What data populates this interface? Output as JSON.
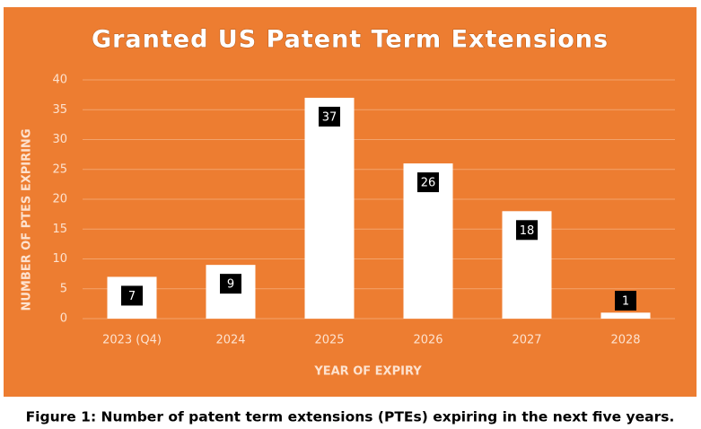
{
  "chart_data": {
    "type": "bar",
    "title": "Granted US Patent Term Extensions",
    "x_label": "YEAR OF EXPIRY",
    "y_label": "NUMBER OF PTES EXPIRING",
    "categories": [
      "2023 (Q4)",
      "2024",
      "2025",
      "2026",
      "2027",
      "2028"
    ],
    "values": [
      7,
      9,
      37,
      26,
      18,
      1
    ],
    "color": "#ffffff",
    "ylim": [
      0,
      40
    ],
    "yticks": [
      0,
      5,
      10,
      15,
      20,
      25,
      30,
      35,
      40
    ],
    "grid": true
  },
  "caption": "Figure 1: Number of patent term extensions (PTEs) expiring in the next five years."
}
